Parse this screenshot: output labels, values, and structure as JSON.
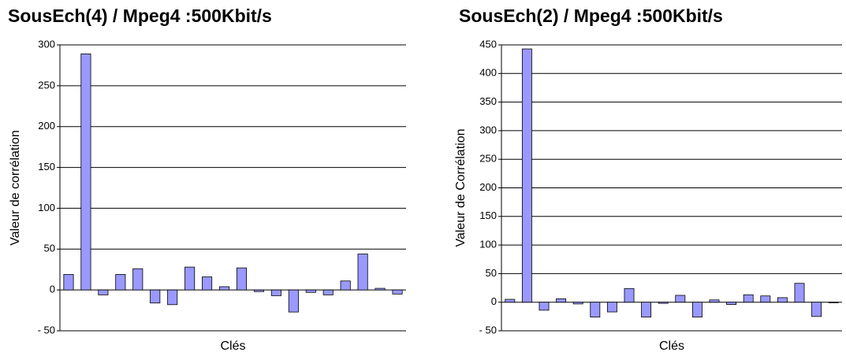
{
  "chart_data": [
    {
      "type": "bar",
      "title": "SousEch(4) /  Mpeg4 :500Kbit/s",
      "x_label": "Clés",
      "y_label": "Valeur de corrélation",
      "values": [
        19,
        289,
        -6,
        19,
        26,
        -16,
        -18,
        28,
        16,
        4,
        27,
        -2,
        -7,
        -27,
        -3,
        -6,
        11,
        44,
        2,
        -5
      ],
      "color": "#9999ff",
      "ylim": [
        -50,
        300
      ],
      "yticks": [
        {
          "value": -50,
          "label": "- 50"
        },
        0,
        50,
        100,
        150,
        200,
        250,
        300
      ],
      "grid": true
    },
    {
      "type": "bar",
      "title": "SousEch(2) /  Mpeg4 :500Kbit/s",
      "x_label": "Clés",
      "y_label": "Valeur de Corrélation",
      "values": [
        5,
        443,
        -14,
        6,
        -3,
        -26,
        -17,
        24,
        -26,
        -2,
        12,
        -26,
        4,
        -4,
        13,
        11,
        8,
        33,
        -25,
        -1
      ],
      "color": "#9999ff",
      "ylim": [
        -50,
        450
      ],
      "yticks": [
        {
          "value": -50,
          "label": "- 50"
        },
        0,
        50,
        100,
        150,
        200,
        250,
        300,
        350,
        400,
        450
      ],
      "grid": true
    }
  ]
}
